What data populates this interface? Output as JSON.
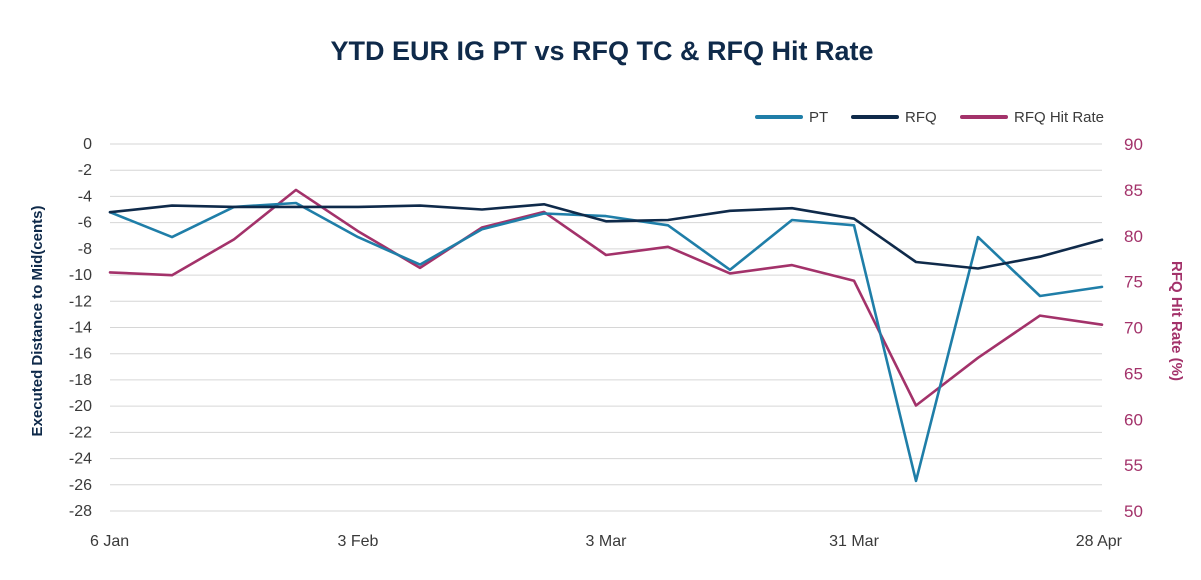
{
  "chart_data": {
    "type": "line",
    "title": "YTD EUR IG PT vs RFQ TC & RFQ Hit Rate",
    "ylabel": "Executed Distance to Mid(cents)",
    "y2label": "RFQ Hit Rate (%)",
    "ylim": [
      -28,
      0
    ],
    "y2lim": [
      50,
      90
    ],
    "yticks": [
      "0",
      "-2",
      "-4",
      "-6",
      "-8",
      "-10",
      "-12",
      "-14",
      "-16",
      "-18",
      "-20",
      "-22",
      "-24",
      "-26",
      "-28"
    ],
    "y2ticks": [
      "90",
      "85",
      "80",
      "75",
      "70",
      "65",
      "60",
      "55",
      "50"
    ],
    "xtick_labels": [
      "6 Jan",
      "3 Feb",
      "3 Mar",
      "31 Mar",
      "28 Apr"
    ],
    "x": [
      "6 Jan",
      "13 Jan",
      "20 Jan",
      "27 Jan",
      "3 Feb",
      "10 Feb",
      "17 Feb",
      "24 Feb",
      "3 Mar",
      "10 Mar",
      "17 Mar",
      "24 Mar",
      "31 Mar",
      "7 Apr",
      "14 Apr",
      "21 Apr",
      "28 Apr"
    ],
    "grid": true,
    "legend_position": "top-right",
    "series": [
      {
        "name": "PT",
        "axis": "left",
        "color": "#1f7ea8",
        "values": [
          -5.2,
          -7.1,
          -4.8,
          -4.5,
          -7.1,
          -9.2,
          -6.5,
          -5.3,
          -5.5,
          -6.2,
          -9.6,
          -5.8,
          -6.2,
          -25.7,
          -7.1,
          -11.6,
          -10.9
        ]
      },
      {
        "name": "RFQ",
        "axis": "left",
        "color": "#0f2a4a",
        "values": [
          -5.2,
          -4.7,
          -4.8,
          -4.8,
          -4.8,
          -4.7,
          -5.0,
          -4.6,
          -5.9,
          -5.8,
          -5.1,
          -4.9,
          -5.7,
          -9.0,
          -9.5,
          -8.6,
          -7.3
        ]
      },
      {
        "name": "RFQ Hit Rate",
        "axis": "right",
        "color": "#a3326a",
        "values": [
          76.0,
          75.7,
          79.6,
          85.0,
          80.5,
          76.5,
          80.9,
          82.6,
          77.9,
          78.8,
          75.9,
          76.8,
          75.1,
          61.5,
          66.7,
          71.3,
          70.3
        ]
      }
    ]
  }
}
